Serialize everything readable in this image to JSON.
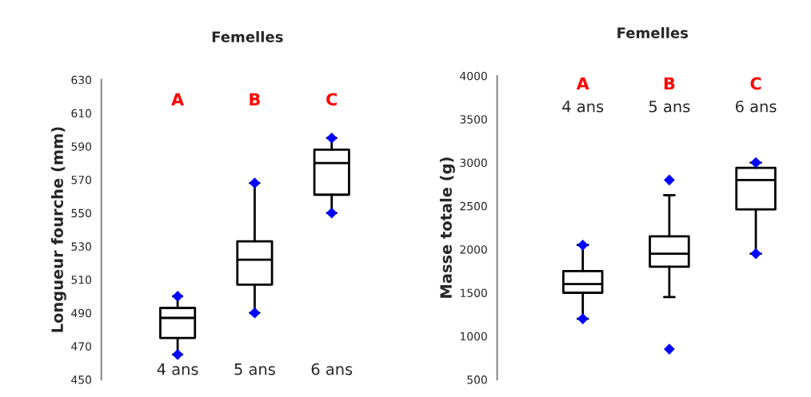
{
  "chart_data": [
    {
      "type": "box",
      "title": "Femelles",
      "ylabel": "Longueur fourche (mm)",
      "categories": [
        "4 ans",
        "5 ans",
        "6 ans"
      ],
      "boxes": [
        {
          "low": 465,
          "q1": 475,
          "median": 487,
          "q3": 493,
          "high": 500,
          "outliers": [
            465,
            500
          ]
        },
        {
          "low": 490,
          "q1": 507,
          "median": 522,
          "q3": 533,
          "high": 568,
          "outliers": [
            490,
            568
          ]
        },
        {
          "low": 550,
          "q1": 561,
          "median": 580,
          "q3": 588,
          "high": 595,
          "outliers": [
            550,
            595
          ]
        }
      ],
      "ylim": [
        450,
        630
      ],
      "yticks": [
        450,
        470,
        490,
        510,
        530,
        550,
        570,
        590,
        610,
        630
      ],
      "grid": false,
      "annotations": [
        "A",
        "B",
        "C"
      ]
    },
    {
      "type": "box",
      "title": "Femelles",
      "ylabel": "Masse totale (g)",
      "categories": [
        "4 ans",
        "5 ans",
        "6 ans"
      ],
      "boxes": [
        {
          "low": 1200,
          "q1": 1500,
          "median": 1600,
          "q3": 1750,
          "high": 2050,
          "outliers": [
            1200,
            2050
          ]
        },
        {
          "low": 1450,
          "q1": 1800,
          "median": 1950,
          "q3": 2150,
          "high": 2625,
          "outliers": [
            850,
            2800
          ]
        },
        {
          "low": 1950,
          "q1": 2460,
          "median": 2800,
          "q3": 2940,
          "high": 3000,
          "outliers": [
            1950,
            3000
          ]
        }
      ],
      "ylim": [
        500,
        4000
      ],
      "yticks": [
        500,
        1000,
        1500,
        2000,
        2500,
        3000,
        3500,
        4000
      ],
      "grid": false,
      "annotations": [
        "A",
        "B",
        "C"
      ]
    }
  ]
}
